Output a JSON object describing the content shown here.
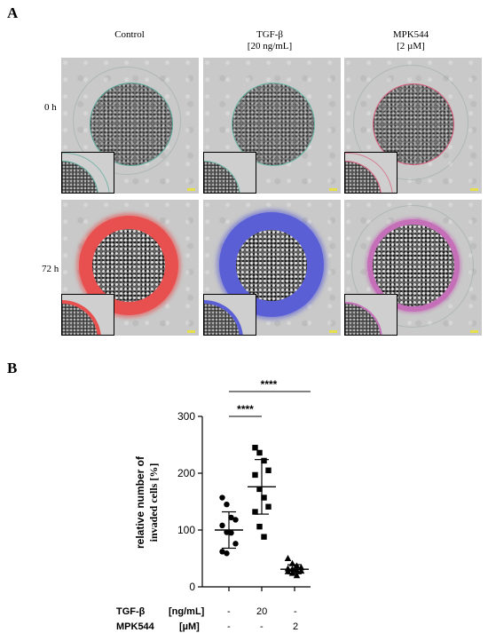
{
  "panel_a": {
    "label": "A",
    "columns": [
      {
        "line1": "Control",
        "line2": ""
      },
      {
        "line1": "TGF-β",
        "line2": "[20 ng/mL]"
      },
      {
        "line1": "MPK544",
        "line2": "[2 µM]"
      }
    ],
    "rows": [
      "0 h",
      "72 h"
    ],
    "colors": {
      "control_72h": "#e8504f",
      "tgf_72h": "#5b5fd6",
      "mpk_72h": "#c56fb9",
      "control_0h_ring": "#5aa89a",
      "tgf_0h_ring": "#6bb9a8",
      "mpk_0h_ring": "#d85a7a"
    }
  },
  "panel_b": {
    "label": "B",
    "significance": [
      "****",
      "****"
    ],
    "table": {
      "row1_label": "TGF-β",
      "row1_unit": "[ng/mL]",
      "row1_values": [
        "-",
        "20",
        "-"
      ],
      "row2_label": "MPK544",
      "row2_unit": "[µM]",
      "row2_values": [
        "-",
        "-",
        "2"
      ]
    }
  },
  "chart_data": {
    "type": "scatter",
    "title": "",
    "xlabel": "",
    "ylabel": "relative number of invaded cells [%]",
    "ylim": [
      0,
      300
    ],
    "yticks": [
      0,
      100,
      200,
      300
    ],
    "groups": [
      {
        "key": "control",
        "marker": "circle",
        "points": [
          157,
          145,
          122,
          118,
          108,
          96,
          95,
          76,
          62,
          59
        ],
        "mean": 100,
        "sd": 32
      },
      {
        "key": "tgf",
        "marker": "square",
        "points": [
          245,
          236,
          222,
          205,
          197,
          172,
          157,
          141,
          132,
          106,
          88
        ],
        "mean": 176,
        "sd": 48
      },
      {
        "key": "mpk",
        "marker": "triangle",
        "points": [
          50,
          41,
          37,
          34,
          32,
          31,
          29,
          28,
          27,
          24,
          20
        ],
        "mean": 31,
        "sd": 8
      }
    ]
  }
}
